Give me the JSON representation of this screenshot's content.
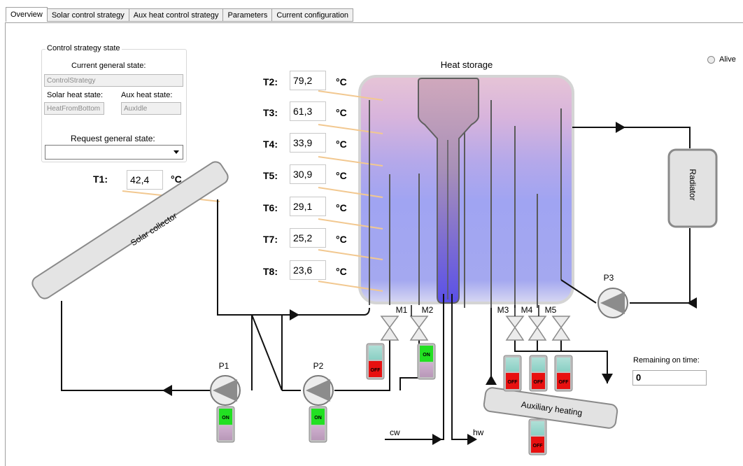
{
  "tabs": [
    {
      "label": "Overview",
      "active": true
    },
    {
      "label": "Solar control strategy",
      "active": false
    },
    {
      "label": "Aux heat control strategy",
      "active": false
    },
    {
      "label": "Parameters",
      "active": false
    },
    {
      "label": "Current configuration",
      "active": false
    }
  ],
  "control_state": {
    "title": "Control strategy state",
    "current_general_state_label": "Current general state:",
    "current_general_state_value": "ControlStrategy",
    "solar_heat_state_label": "Solar heat state:",
    "solar_heat_state_value": "HeatFromBottom",
    "aux_heat_state_label": "Aux heat state:",
    "aux_heat_state_value": "AuxIdle",
    "request_general_state_label": "Request general state:",
    "request_general_state_value": ""
  },
  "temperatures": {
    "unit": "°C",
    "T1": {
      "label": "T1:",
      "value": "42,4"
    },
    "T2": {
      "label": "T2:",
      "value": "79,2"
    },
    "T3": {
      "label": "T3:",
      "value": "61,3"
    },
    "T4": {
      "label": "T4:",
      "value": "33,9"
    },
    "T5": {
      "label": "T5:",
      "value": "30,9"
    },
    "T6": {
      "label": "T6:",
      "value": "29,1"
    },
    "T7": {
      "label": "T7:",
      "value": "25,2"
    },
    "T8": {
      "label": "T8:",
      "value": "23,6"
    }
  },
  "labels": {
    "heat_storage": "Heat storage",
    "solar_collector": "Solar collector",
    "radiator": "Radiator",
    "auxiliary_heating": "Auxiliary heating",
    "cw": "cw",
    "hw": "hw",
    "alive": "Alive",
    "remaining_on_time_label": "Remaining on time:",
    "remaining_on_time_value": "0"
  },
  "pumps": {
    "P1": "P1",
    "P2": "P2",
    "P3": "P3"
  },
  "valves": {
    "M1": "M1",
    "M2": "M2",
    "M3": "M3",
    "M4": "M4",
    "M5": "M5"
  },
  "switches": {
    "on_label": "ON",
    "off_label": "OFF",
    "P1": "ON",
    "P2": "ON",
    "M1": "OFF",
    "M2": "ON",
    "M3": "OFF",
    "M4": "OFF",
    "M5": "OFF",
    "AUX": "OFF"
  },
  "colors": {
    "on": "#22e022",
    "off": "#e01010",
    "tank_top": "#e0b8d0",
    "tank_bottom": "#9aa0f0",
    "sensor_line": "#f2c890"
  }
}
